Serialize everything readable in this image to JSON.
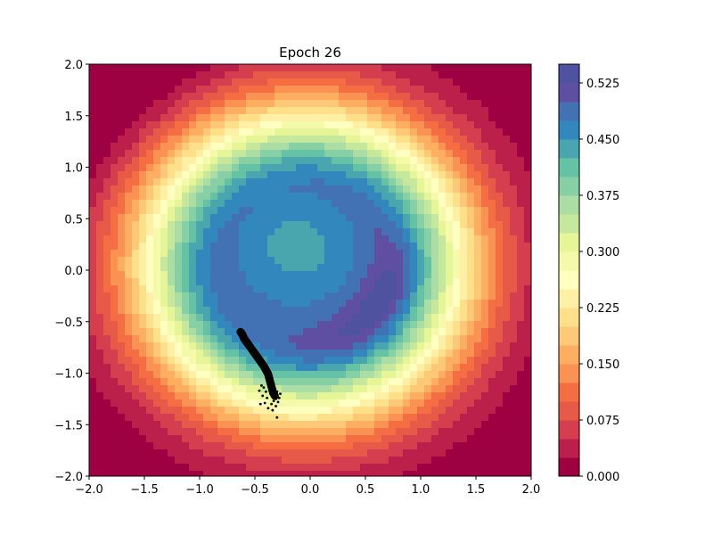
{
  "chart_data": {
    "type": "heatmap",
    "subtype": "filled-contour",
    "title": "Epoch 26",
    "xlabel": "",
    "ylabel": "",
    "xlim": [
      -2.0,
      2.0
    ],
    "ylim": [
      -2.0,
      2.0
    ],
    "x_ticks": [
      "−2.0",
      "−1.5",
      "−1.0",
      "−0.5",
      "0.0",
      "0.5",
      "1.0",
      "1.5",
      "2.0"
    ],
    "x_tick_values": [
      -2.0,
      -1.5,
      -1.0,
      -0.5,
      0.0,
      0.5,
      1.0,
      1.5,
      2.0
    ],
    "y_ticks": [
      "−2.0",
      "−1.5",
      "−1.0",
      "−0.5",
      "0.0",
      "0.5",
      "1.0",
      "1.5",
      "2.0"
    ],
    "y_tick_values": [
      -2.0,
      -1.5,
      -1.0,
      -0.5,
      0.0,
      0.5,
      1.0,
      1.5,
      2.0
    ],
    "grid": false,
    "colormap": "Spectral",
    "colorbar": {
      "vmin": 0.0,
      "vmax": 0.55,
      "level_step": 0.025,
      "ticks": [
        "0.000",
        "0.075",
        "0.150",
        "0.225",
        "0.300",
        "0.375",
        "0.450",
        "0.525"
      ],
      "tick_values": [
        0.0,
        0.075,
        0.15,
        0.225,
        0.3,
        0.375,
        0.45,
        0.525
      ],
      "colors": [
        "#9e0142",
        "#bd1f4b",
        "#d53e4f",
        "#e65a47",
        "#f46d43",
        "#f99252",
        "#fdae61",
        "#fdc979",
        "#fee08b",
        "#fff0a6",
        "#ffffbf",
        "#f4faa9",
        "#e6f598",
        "#c6e89c",
        "#abdda4",
        "#87cfa4",
        "#66c2a5",
        "#4aa6ae",
        "#3288bd",
        "#4272b3",
        "#5e4fa2",
        "#4e52a0"
      ]
    },
    "field": {
      "description_of_structure": "smooth bowl with maximum ~0.53 in a crescent band right/below of centre, plateau ~0.45 near (-0.1, 0.2), minimum near corners especially top-left",
      "ring_center": [
        -0.05,
        0.05
      ],
      "ring_radius": 0.7,
      "crescent_center": [
        0.5,
        -0.4
      ],
      "crescent_max": 0.54,
      "plateau_center": [
        -0.12,
        0.22
      ],
      "plateau_value": 0.46
    },
    "scatter": {
      "color": "#000000",
      "description_of_structure": "dense band of samples from (-0.63,-0.6) curving down to (-0.35,-1.2), with sparse spread near the bottom end",
      "points": [
        [
          -0.63,
          -0.6
        ],
        [
          -0.61,
          -0.63
        ],
        [
          -0.6,
          -0.66
        ],
        [
          -0.58,
          -0.69
        ],
        [
          -0.56,
          -0.72
        ],
        [
          -0.54,
          -0.75
        ],
        [
          -0.52,
          -0.78
        ],
        [
          -0.5,
          -0.81
        ],
        [
          -0.48,
          -0.84
        ],
        [
          -0.46,
          -0.87
        ],
        [
          -0.44,
          -0.9
        ],
        [
          -0.42,
          -0.93
        ],
        [
          -0.4,
          -0.97
        ],
        [
          -0.38,
          -1.01
        ],
        [
          -0.37,
          -1.05
        ],
        [
          -0.36,
          -1.09
        ],
        [
          -0.35,
          -1.13
        ],
        [
          -0.34,
          -1.17
        ],
        [
          -0.33,
          -1.2
        ],
        [
          -0.32,
          -1.22
        ],
        [
          -0.3,
          -1.18
        ],
        [
          -0.31,
          -1.25
        ],
        [
          -0.29,
          -1.28
        ],
        [
          -0.33,
          -1.27
        ],
        [
          -0.36,
          -1.2
        ],
        [
          -0.4,
          -1.18
        ],
        [
          -0.42,
          -1.14
        ],
        [
          -0.44,
          -1.12
        ],
        [
          -0.46,
          -1.17
        ],
        [
          -0.43,
          -1.22
        ],
        [
          -0.39,
          -1.24
        ],
        [
          -0.35,
          -1.3
        ],
        [
          -0.31,
          -1.32
        ],
        [
          -0.28,
          -1.24
        ],
        [
          -0.27,
          -1.2
        ],
        [
          -0.3,
          -1.43
        ],
        [
          -0.38,
          -1.34
        ],
        [
          -0.45,
          -1.3
        ],
        [
          -0.41,
          -1.29
        ],
        [
          -0.34,
          -1.36
        ]
      ]
    }
  }
}
